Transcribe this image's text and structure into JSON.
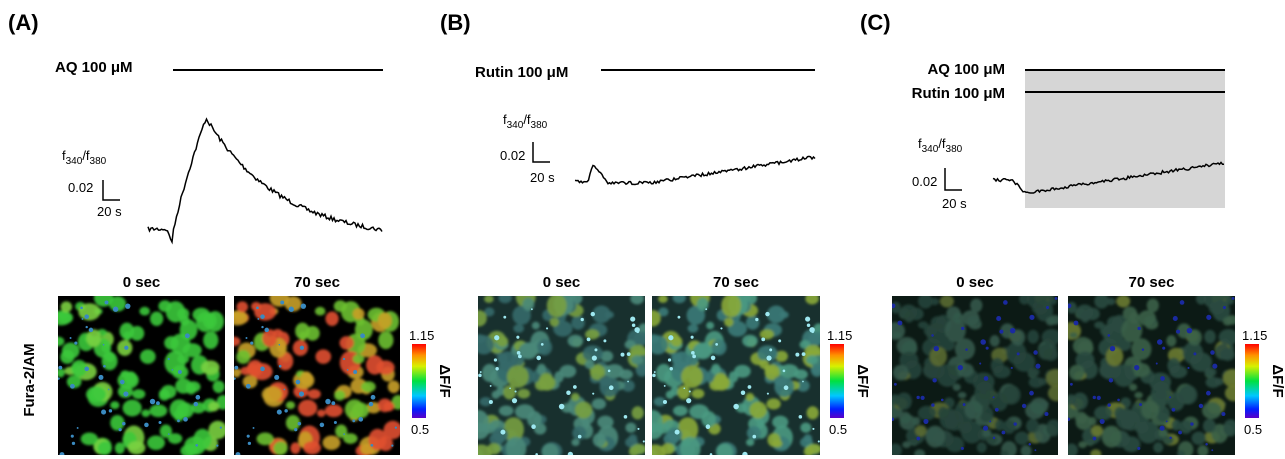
{
  "panels": [
    {
      "label": "(A)",
      "treatments": [
        "AQ 100 μM"
      ],
      "ratio_label": [
        "f",
        "340",
        "/f",
        "380"
      ],
      "scale_y": "0.02",
      "scale_x": "20 s",
      "image_times": [
        "0 sec",
        "70 sec"
      ],
      "colorbar": {
        "max": "1.15",
        "min": "0.5",
        "title": "ΔF/F"
      }
    },
    {
      "label": "(B)",
      "treatments": [
        "Rutin 100 μM"
      ],
      "ratio_label": [
        "f",
        "340",
        "/f",
        "380"
      ],
      "scale_y": "0.02",
      "scale_x": "20 s",
      "image_times": [
        "0 sec",
        "70 sec"
      ],
      "colorbar": {
        "max": "1.15",
        "min": "0.5",
        "title": "ΔF/F"
      }
    },
    {
      "label": "(C)",
      "treatments": [
        "AQ 100 μM",
        "Rutin 100 μM"
      ],
      "ratio_label": [
        "f",
        "340",
        "/f",
        "380"
      ],
      "scale_y": "0.02",
      "scale_x": "20 s",
      "image_times": [
        "0 sec",
        "70 sec"
      ],
      "colorbar": {
        "max": "1.15",
        "min": "0.5",
        "title": "ΔF/F"
      }
    }
  ],
  "row_label": "Fura-2/AM"
}
